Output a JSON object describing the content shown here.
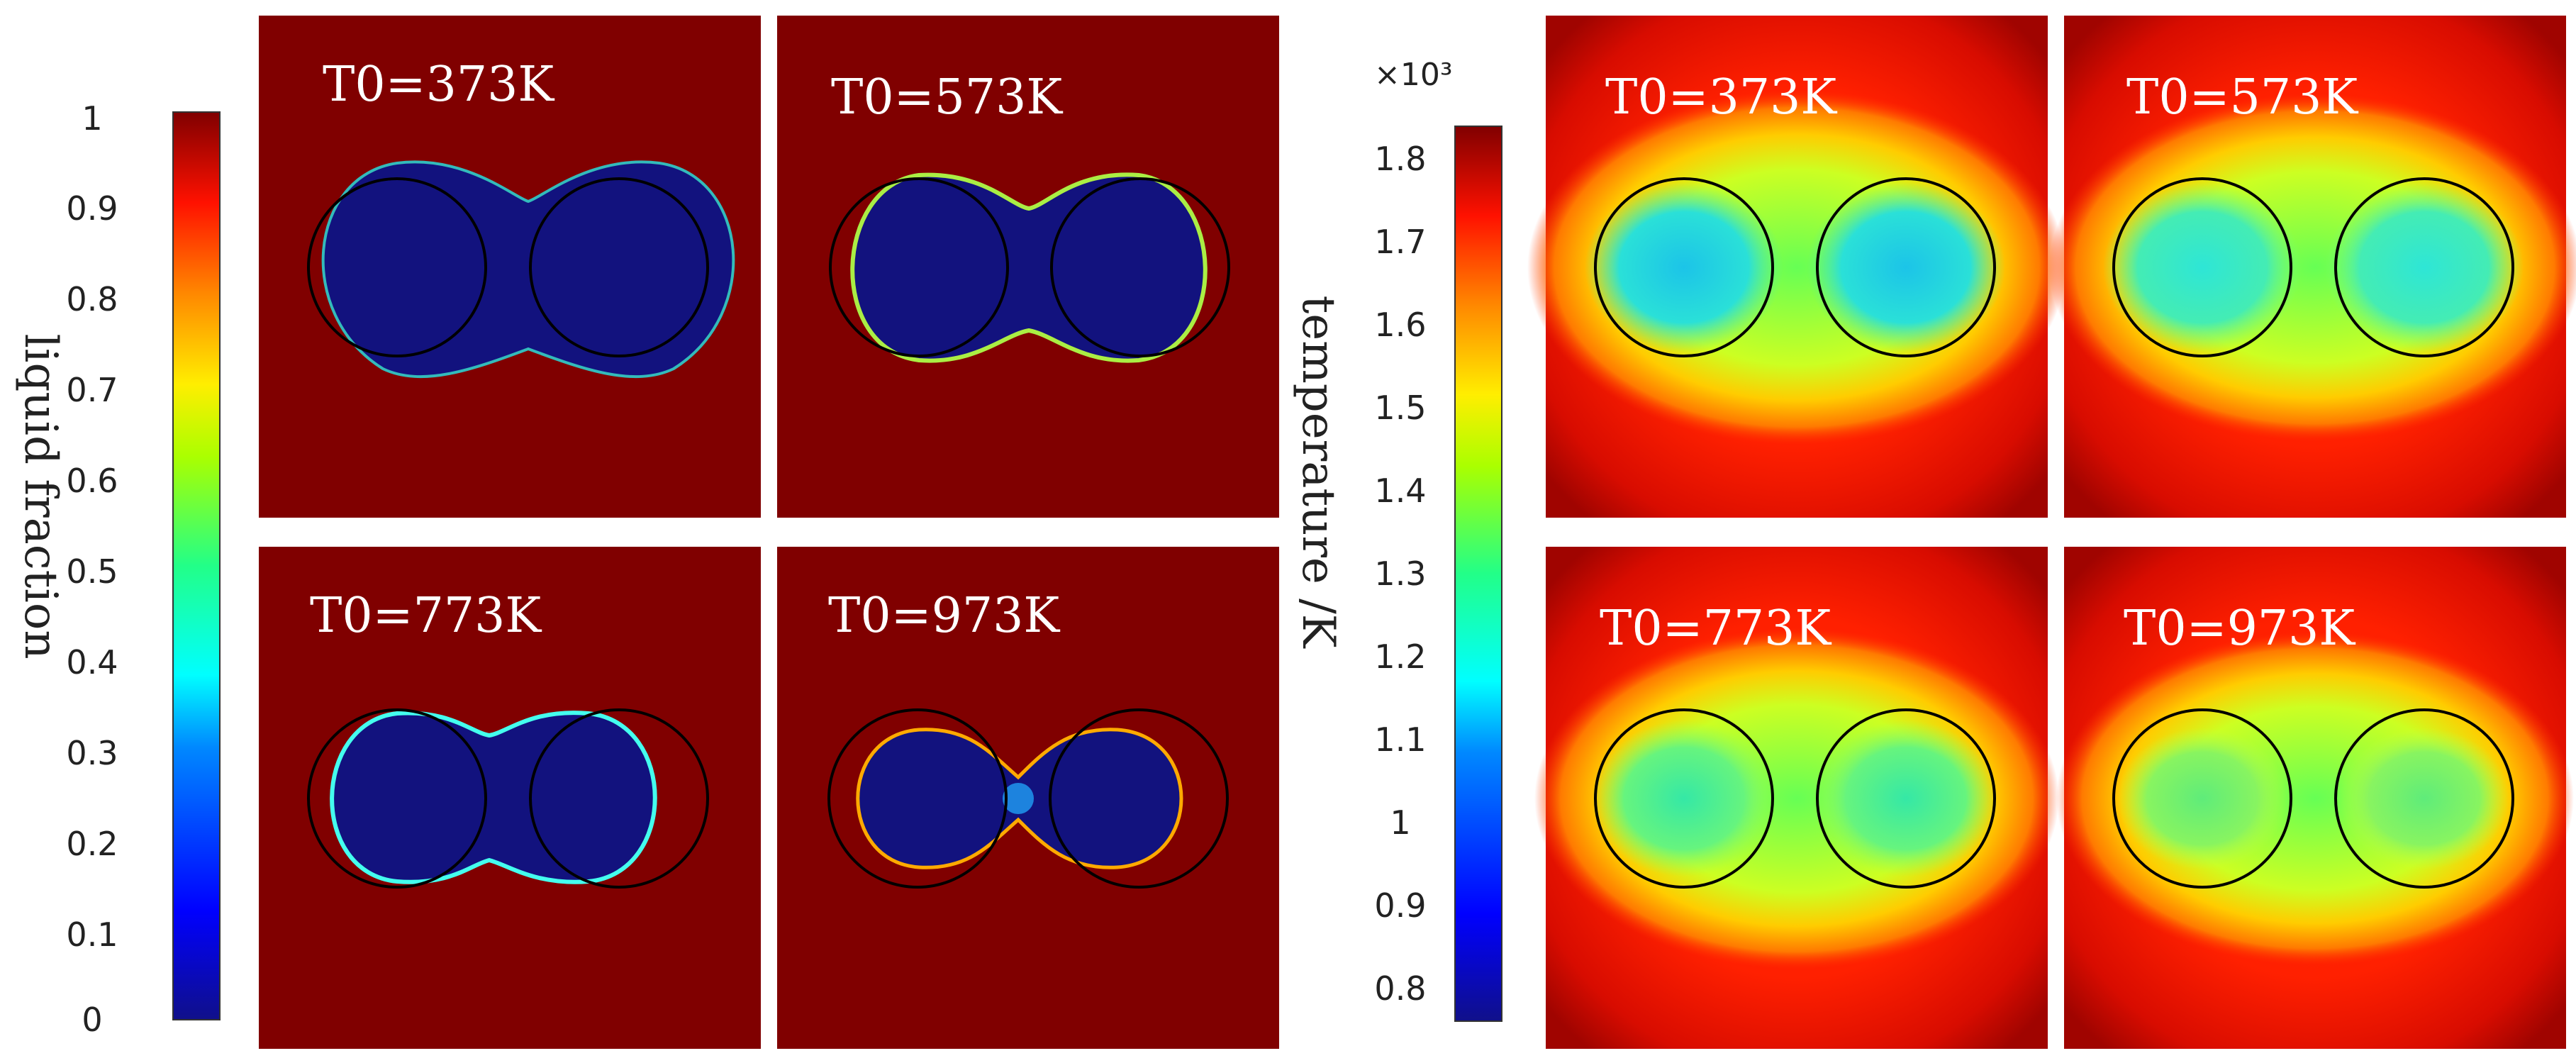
{
  "liquid_fraction": {
    "colorbar": {
      "title": "liquid fraction",
      "ticks": [
        "1",
        "0.9",
        "0.8",
        "0.7",
        "0.6",
        "0.5",
        "0.4",
        "0.3",
        "0.2",
        "0.1",
        "0"
      ]
    },
    "panels": [
      {
        "label": "T0=373K",
        "state": "fully-solid-wide"
      },
      {
        "label": "T0=573K",
        "state": "solid-with-edge"
      },
      {
        "label": "T0=773K",
        "state": "solid-with-cyan-edge"
      },
      {
        "label": "T0=973K",
        "state": "shrunken-necking"
      }
    ]
  },
  "temperature": {
    "colorbar": {
      "title": "temperature /K",
      "multiplier": "×10³",
      "ticks": [
        "1.8",
        "1.7",
        "1.6",
        "1.5",
        "1.4",
        "1.3",
        "1.2",
        "1.1",
        "1",
        "0.9",
        "0.8"
      ]
    },
    "panels": [
      {
        "label": "T0=373K",
        "core_color": "#1cc4e8"
      },
      {
        "label": "T0=573K",
        "core_color": "#2ee6d6"
      },
      {
        "label": "T0=773K",
        "core_color": "#35e8a6"
      },
      {
        "label": "T0=973K",
        "core_color": "#5fec7a"
      }
    ]
  },
  "colors": {
    "jet_dark_red": "#800000",
    "jet_red": "#ff2200",
    "jet_orange": "#ff8800",
    "jet_yellow": "#ffee00",
    "jet_green": "#66ff66",
    "jet_cyan": "#00ffff",
    "jet_blue": "#0066ff",
    "jet_dark_blue": "#10108a",
    "outline": "#000000"
  }
}
